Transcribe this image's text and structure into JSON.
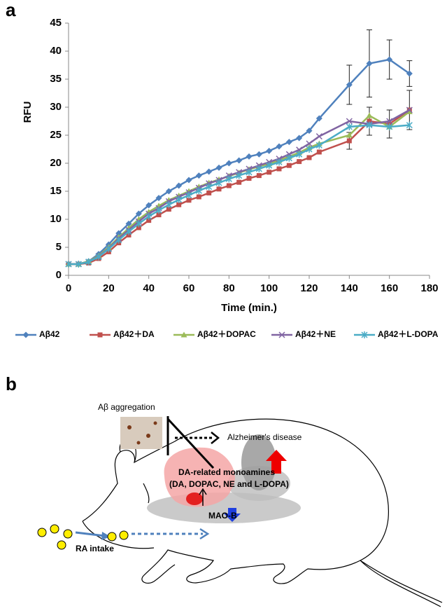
{
  "panel_labels": [
    "a",
    "b"
  ],
  "chart_data": {
    "type": "line",
    "x": [
      0,
      5,
      10,
      15,
      20,
      25,
      30,
      35,
      40,
      45,
      50,
      55,
      60,
      65,
      70,
      75,
      80,
      85,
      90,
      95,
      100,
      105,
      110,
      115,
      120,
      125,
      140,
      150,
      160,
      170
    ],
    "xlabel": "Time (min.)",
    "ylabel": "RFU",
    "xlim": [
      0,
      180
    ],
    "xticks": [
      0,
      20,
      40,
      60,
      80,
      100,
      120,
      140,
      160,
      180
    ],
    "ylim": [
      0,
      45
    ],
    "yticks": [
      0,
      5,
      10,
      15,
      20,
      25,
      30,
      35,
      40,
      45
    ],
    "legend": "bottom",
    "series": [
      {
        "name": "Aβ42",
        "color": "#4f81bd",
        "marker": "diamond",
        "values": [
          2,
          2,
          2.5,
          3.8,
          5.5,
          7.5,
          9.2,
          11,
          12.5,
          13.8,
          15,
          16,
          17,
          17.8,
          18.5,
          19.2,
          20,
          20.5,
          21.2,
          21.6,
          22.2,
          23,
          23.8,
          24.5,
          25.8,
          28,
          34,
          37.8,
          38.5,
          36
        ],
        "errors": [
          null,
          null,
          null,
          null,
          null,
          null,
          null,
          null,
          null,
          null,
          null,
          null,
          null,
          null,
          null,
          null,
          null,
          null,
          null,
          null,
          null,
          null,
          null,
          null,
          null,
          null,
          3.5,
          6,
          3.5,
          2.3
        ]
      },
      {
        "name": "Aβ42＋DA",
        "color": "#c0504d",
        "marker": "square",
        "values": [
          2,
          2,
          2.2,
          3,
          4.2,
          5.8,
          7.2,
          8.5,
          9.8,
          10.8,
          11.8,
          12.6,
          13.4,
          14,
          14.7,
          15.4,
          16,
          16.6,
          17.3,
          17.8,
          18.4,
          19,
          19.6,
          20.3,
          21,
          22,
          24,
          27.5,
          27,
          29.5
        ],
        "errors": [
          null,
          null,
          null,
          null,
          null,
          null,
          null,
          null,
          null,
          null,
          null,
          null,
          null,
          null,
          null,
          null,
          null,
          null,
          null,
          null,
          null,
          null,
          null,
          null,
          null,
          null,
          1.5,
          2.5,
          2.5,
          3.5
        ]
      },
      {
        "name": "Aβ42＋DOPAC",
        "color": "#9bbb59",
        "marker": "triangle",
        "values": [
          2,
          2,
          2.5,
          3.5,
          5,
          6.8,
          8.4,
          10,
          11.3,
          12.4,
          13.4,
          14.2,
          15,
          15.8,
          16.5,
          17.1,
          17.7,
          18.3,
          18.9,
          19.4,
          19.9,
          20.5,
          21.2,
          21.9,
          22.8,
          23.5,
          25,
          28.5,
          26.5,
          29.2
        ]
      },
      {
        "name": "Aβ42＋NE",
        "color": "#8064a2",
        "marker": "x",
        "values": [
          2,
          2,
          2.4,
          3.4,
          4.8,
          6.6,
          8.1,
          9.6,
          11,
          12,
          13.2,
          14,
          14.8,
          15.6,
          16.4,
          17,
          17.8,
          18.4,
          19,
          19.6,
          20.2,
          20.8,
          21.6,
          22.4,
          23.5,
          24.8,
          27.5,
          27,
          27.5,
          29.5
        ]
      },
      {
        "name": "Aβ42＋L-DOPA",
        "color": "#4bacc6",
        "marker": "star",
        "values": [
          2,
          2,
          2.4,
          3.3,
          4.7,
          6.3,
          7.8,
          9.2,
          10.5,
          11.6,
          12.6,
          13.5,
          14.3,
          15.1,
          15.8,
          16.5,
          17.2,
          17.8,
          18.4,
          19,
          19.6,
          20.2,
          20.9,
          21.6,
          22.5,
          23.2,
          26.5,
          26.8,
          26.5,
          26.8
        ]
      }
    ]
  },
  "diagram": {
    "aggregation": "Aβ aggregation",
    "disease": "Alzheimer's disease",
    "monoamines": "DA-related monoamines",
    "monoamine_list": "(DA, DOPAC, NE and L-DOPA)",
    "enzyme": "MAO-B",
    "intake": "RA intake"
  }
}
